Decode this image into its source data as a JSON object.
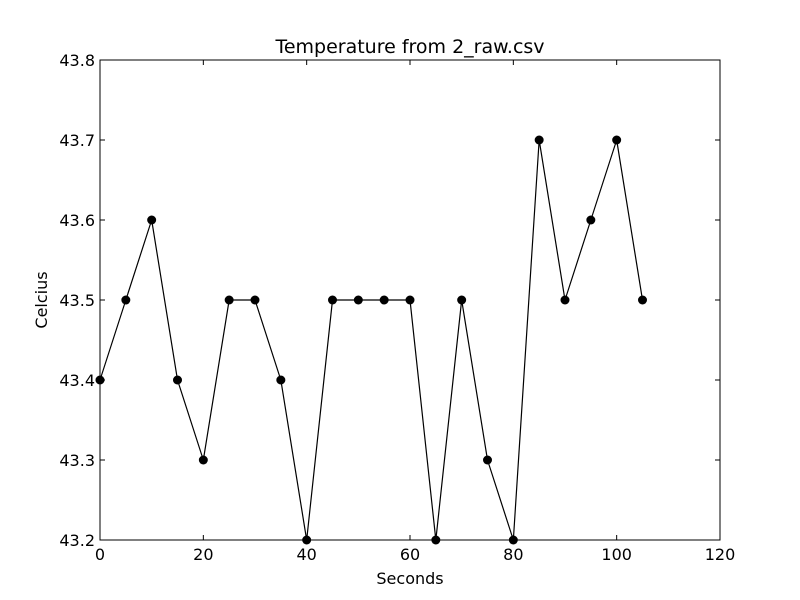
{
  "chart_data": {
    "type": "line",
    "title": "Temperature from 2_raw.csv",
    "xlabel": "Seconds",
    "ylabel": "Celcius",
    "xlim": [
      0,
      120
    ],
    "ylim": [
      43.2,
      43.8
    ],
    "x_ticks": [
      0,
      20,
      40,
      60,
      80,
      100,
      120
    ],
    "y_ticks": [
      43.2,
      43.3,
      43.4,
      43.5,
      43.6,
      43.7,
      43.8
    ],
    "x_tick_labels": [
      "0",
      "20",
      "40",
      "60",
      "80",
      "100",
      "120"
    ],
    "y_tick_labels": [
      "43.2",
      "43.3",
      "43.4",
      "43.5",
      "43.6",
      "43.7",
      "43.8"
    ],
    "grid": false,
    "series": [
      {
        "name": "Temperature",
        "color": "#000000",
        "marker": "circle",
        "x": [
          0,
          5,
          10,
          15,
          20,
          25,
          30,
          35,
          40,
          45,
          50,
          55,
          60,
          65,
          70,
          75,
          80,
          85,
          90,
          95,
          100,
          105
        ],
        "y": [
          43.4,
          43.5,
          43.6,
          43.4,
          43.3,
          43.5,
          43.5,
          43.4,
          43.2,
          43.5,
          43.5,
          43.5,
          43.5,
          43.2,
          43.5,
          43.3,
          43.2,
          43.7,
          43.5,
          43.6,
          43.7,
          43.5
        ]
      }
    ]
  }
}
